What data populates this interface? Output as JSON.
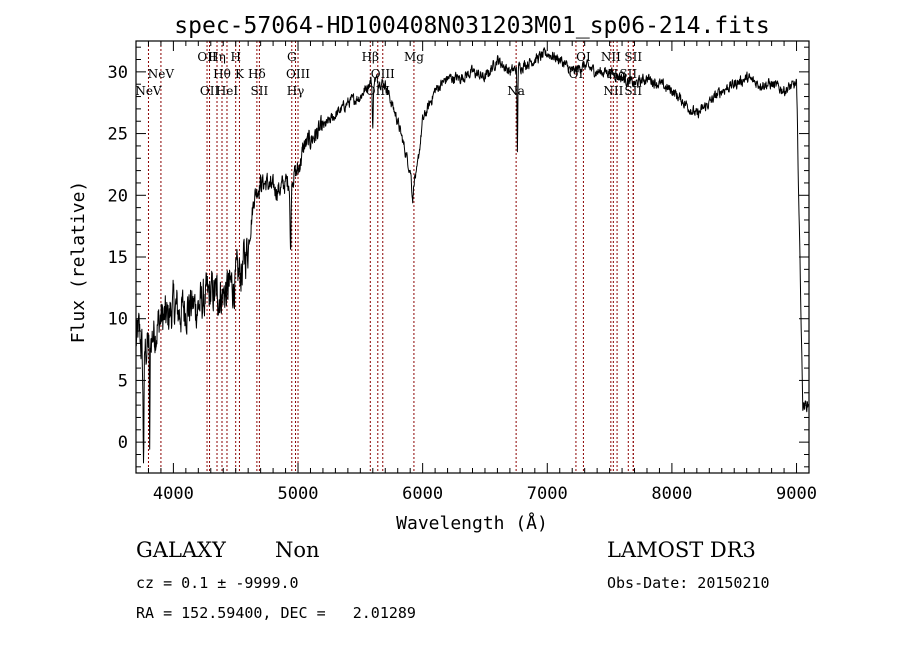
{
  "chart_data": {
    "type": "line",
    "title": "spec-57064-HD100408N031203M01_sp06-214.fits",
    "xlabel": "Wavelength (Å)",
    "ylabel": "Flux (relative)",
    "xlim": [
      3700,
      9100
    ],
    "ylim": [
      -2.5,
      32.5
    ],
    "x_ticks": [
      4000,
      5000,
      6000,
      7000,
      8000,
      9000
    ],
    "y_ticks": [
      0,
      5,
      10,
      15,
      20,
      25,
      30
    ],
    "line_color": "#000000",
    "marker_color": "#8b0000",
    "spectrum_anchors": {
      "wavelength": [
        3700,
        3720,
        3760,
        3800,
        3850,
        3900,
        3950,
        4000,
        4050,
        4100,
        4150,
        4200,
        4250,
        4300,
        4350,
        4400,
        4450,
        4500,
        4550,
        4600,
        4650,
        4700,
        4750,
        4800,
        4850,
        4900,
        4950,
        5000,
        5050,
        5100,
        5150,
        5200,
        5300,
        5400,
        5500,
        5600,
        5700,
        5800,
        5900,
        5950,
        6000,
        6100,
        6200,
        6300,
        6400,
        6500,
        6600,
        6700,
        6800,
        6900,
        7000,
        7100,
        7200,
        7300,
        7400,
        7500,
        7600,
        7700,
        7800,
        7900,
        8000,
        8100,
        8200,
        8300,
        8400,
        8500,
        8600,
        8700,
        8800,
        8900,
        9000,
        9050,
        9100
      ],
      "flux": [
        8,
        9,
        7,
        8,
        9,
        10,
        10,
        11,
        10.5,
        11,
        11,
        11,
        11.5,
        12,
        12,
        12,
        12.5,
        13,
        14,
        16,
        20,
        21,
        21,
        20.5,
        20.5,
        21,
        21.5,
        22,
        24,
        24.5,
        25,
        25.5,
        26.5,
        27.5,
        28,
        29.5,
        29,
        26,
        22,
        21.5,
        26,
        28.5,
        29.5,
        29.5,
        30,
        29.5,
        31,
        30,
        30.5,
        31,
        31.5,
        31,
        30,
        30.5,
        30,
        30,
        29.5,
        29,
        29.5,
        29,
        28.5,
        27.5,
        26.5,
        27.5,
        28.5,
        29,
        29.5,
        29,
        29,
        28.5,
        29,
        3,
        3
      ]
    },
    "spectrum_dips": [
      {
        "wavelength": 3760,
        "depth": 8,
        "width": 6
      },
      {
        "wavelength": 3810,
        "depth": 9,
        "width": 4
      },
      {
        "wavelength": 4940,
        "depth": 6,
        "width": 6
      },
      {
        "wavelength": 5600,
        "depth": 4,
        "width": 6
      },
      {
        "wavelength": 6760,
        "depth": 7,
        "width": 4
      },
      {
        "wavelength": 5920,
        "depth": 2,
        "width": 10
      }
    ],
    "lines": [
      {
        "name": "NeV",
        "wavelength": 3800,
        "row": 2
      },
      {
        "name": "NeV",
        "wavelength": 3900,
        "row": 1
      },
      {
        "name": "OII",
        "wavelength": 4270,
        "row": 0
      },
      {
        "name": "OII",
        "wavelength": 4290,
        "row": 2
      },
      {
        "name": "Hη",
        "wavelength": 4350,
        "row": 0
      },
      {
        "name": "Hθ",
        "wavelength": 4390,
        "row": 1
      },
      {
        "name": "HeI",
        "wavelength": 4430,
        "row": 2
      },
      {
        "name": "H",
        "wavelength": 4500,
        "row": 0
      },
      {
        "name": "K",
        "wavelength": 4530,
        "row": 1
      },
      {
        "name": "Hδ",
        "wavelength": 4670,
        "row": 1
      },
      {
        "name": "SII",
        "wavelength": 4690,
        "row": 2
      },
      {
        "name": "G",
        "wavelength": 4950,
        "row": 0
      },
      {
        "name": "OIII",
        "wavelength": 5000,
        "row": 1
      },
      {
        "name": "Hγ",
        "wavelength": 4980,
        "row": 2
      },
      {
        "name": "Hβ",
        "wavelength": 5580,
        "row": 0
      },
      {
        "name": "OIII",
        "wavelength": 5680,
        "row": 1
      },
      {
        "name": "OIII",
        "wavelength": 5640,
        "row": 2
      },
      {
        "name": "Mg",
        "wavelength": 5930,
        "row": 0
      },
      {
        "name": "Na",
        "wavelength": 6750,
        "row": 2
      },
      {
        "name": "OI",
        "wavelength": 7290,
        "row": 0
      },
      {
        "name": "OI",
        "wavelength": 7230,
        "row": 1
      },
      {
        "name": "NII",
        "wavelength": 7510,
        "row": 0
      },
      {
        "name": "NII",
        "wavelength": 7530,
        "row": 2
      },
      {
        "name": "Hα",
        "wavelength": 7560,
        "row": 1
      },
      {
        "name": "SII",
        "wavelength": 7650,
        "row": 1
      },
      {
        "name": "SII",
        "wavelength": 7690,
        "row": 0
      },
      {
        "name": "SII",
        "wavelength": 7690,
        "row": 2
      }
    ]
  },
  "info": {
    "class_label": "GALAXY",
    "subclass_label": "Non",
    "survey_label": "LAMOST DR3",
    "cz_text": "cz = 0.1 ± -9999.0",
    "obs_date_text": "Obs-Date: 20150210",
    "radec_text": "RA = 152.59400, DEC =   2.01289"
  }
}
